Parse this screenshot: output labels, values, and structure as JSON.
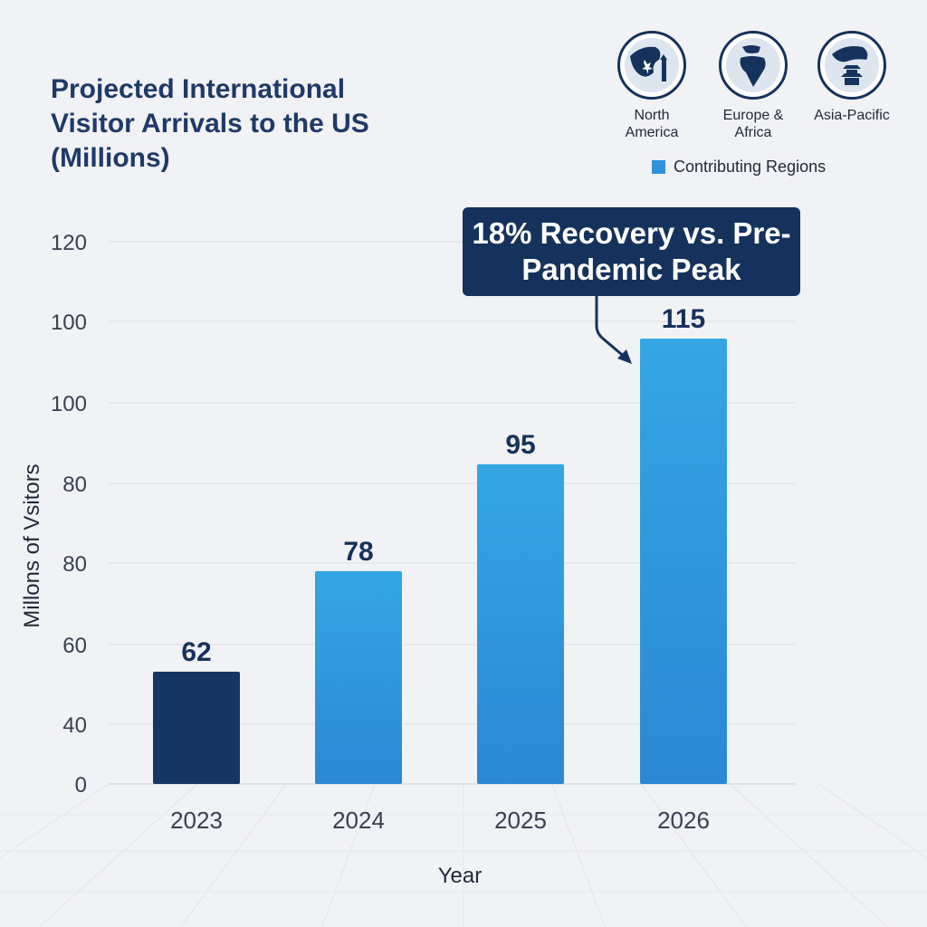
{
  "regions": [
    {
      "label": "North America",
      "icon": "north-america-globe-icon"
    },
    {
      "label": "Europe & Africa",
      "icon": "europe-africa-globe-icon"
    },
    {
      "label": "Asia-Pacific",
      "icon": "asia-pacific-globe-icon"
    }
  ],
  "legend": {
    "label": "Contributing Regions",
    "color": "#2f93dc"
  },
  "annotation": {
    "text": "18% Recovery vs. Pre-Pandemic Peak",
    "target_category": "2026"
  },
  "colors": {
    "highlight_bar": "#163562",
    "bar_top": "#34a6e3",
    "bar_bottom": "#2c88d4",
    "label_text": "#16325c"
  },
  "chart_data": {
    "type": "bar",
    "title": "Projected International Visitor Arrivals to the US (Millions)",
    "xlabel": "Year",
    "ylabel": "Millons of Vsitors",
    "categories": [
      "2023",
      "2024",
      "2025",
      "2026"
    ],
    "values": [
      62,
      78,
      95,
      115
    ],
    "y_tick_labels": [
      "0",
      "40",
      "60",
      "80",
      "80",
      "100",
      "100",
      "120"
    ],
    "grid": true
  }
}
